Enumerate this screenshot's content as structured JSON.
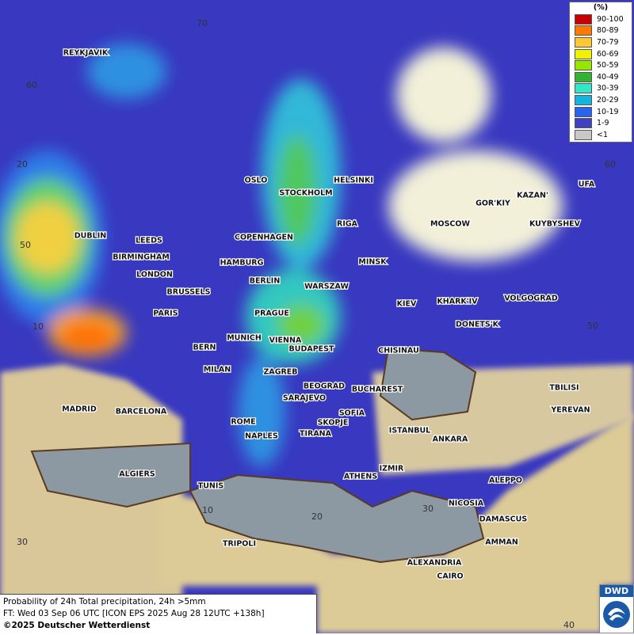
{
  "map": {
    "grid_labels": [
      "70",
      "60",
      "20",
      "50",
      "10",
      "30",
      "10",
      "20",
      "30",
      "40",
      "60",
      "50"
    ],
    "cities": [
      "REYKJAVIK",
      "OSLO",
      "STOCKHOLM",
      "HELSINKI",
      "GOR'KIY",
      "KAZAN'",
      "UFA",
      "DUBLIN",
      "LEEDS",
      "COPENHAGEN",
      "RIGA",
      "MOSCOW",
      "KUYBYSHEV",
      "BIRMINGHAM",
      "HAMBURG",
      "MINSK",
      "LONDON",
      "BERLIN",
      "WARSZAW",
      "BRUSSELS",
      "KIEV",
      "KHARK'IV",
      "VOLGOGRAD",
      "PARIS",
      "PRAGUE",
      "DONETS'K",
      "MUNICH",
      "VIENNA",
      "BERN",
      "BUDAPEST",
      "CHISINAU",
      "MILAN",
      "ZAGREB",
      "BEOGRAD",
      "BUCHAREST",
      "TBILISI",
      "SARAJEVO",
      "MADRID",
      "BARCELONA",
      "SOFIA",
      "YEREVAN",
      "ROME",
      "SKOPJE",
      "NAPLES",
      "TIRANA",
      "ISTANBUL",
      "ANKARA",
      "IZMIR",
      "ALGIERS",
      "ATHENS",
      "ALEPPO",
      "TUNIS",
      "NICOSIA",
      "DAMASCUS",
      "AMMAN",
      "TRIPOLI",
      "ALEXANDRIA",
      "CAIRO"
    ]
  },
  "legend": {
    "title": "(%)",
    "entries": [
      {
        "label": "90-100",
        "color": "#c80000"
      },
      {
        "label": "80-89",
        "color": "#ff7800"
      },
      {
        "label": "70-79",
        "color": "#ffc832"
      },
      {
        "label": "60-69",
        "color": "#f0f000"
      },
      {
        "label": "50-59",
        "color": "#96e600"
      },
      {
        "label": "40-49",
        "color": "#32b432"
      },
      {
        "label": "30-39",
        "color": "#32e6c8"
      },
      {
        "label": "20-29",
        "color": "#14b4dc"
      },
      {
        "label": "10-19",
        "color": "#2864f0"
      },
      {
        "label": "1-9",
        "color": "#4040c0"
      },
      {
        "label": "<1",
        "color": "#c8c8c8"
      }
    ]
  },
  "footer": {
    "lines": [
      "Probability of 24h Total precipitation, 24h >5mm",
      "FT: Wed 03 Sep 06 UTC [ICON EPS 2025 Aug 28 12UTC +138h]",
      "©2025 Deutscher Wetterdienst"
    ]
  },
  "logo": "DWD"
}
